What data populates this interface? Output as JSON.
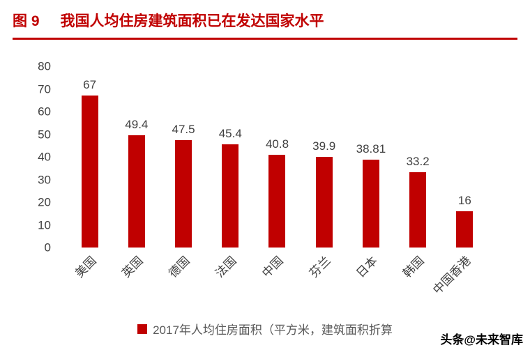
{
  "header": {
    "figure_label": "图 9",
    "title": "我国人均住房建筑面积已在发达国家水平"
  },
  "chart_data": {
    "type": "bar",
    "title": "我国人均住房建筑面积已在发达国家水平",
    "categories": [
      "美国",
      "英国",
      "德国",
      "法国",
      "中国",
      "芬兰",
      "日本",
      "韩国",
      "中国香港"
    ],
    "values": [
      67,
      49.4,
      47.5,
      45.4,
      40.8,
      39.9,
      38.81,
      33.2,
      16
    ],
    "value_labels": [
      "67",
      "49.4",
      "47.5",
      "45.4",
      "40.8",
      "39.9",
      "38.81",
      "33.2",
      "16"
    ],
    "legend": "2017年人均住房面积（平方米，建筑面积折算",
    "ylim": [
      0,
      80
    ],
    "yticks": [
      0,
      10,
      20,
      30,
      40,
      50,
      60,
      70,
      80
    ],
    "grid": false,
    "legend_position": "bottom",
    "bar_color": "#c00000",
    "xlabel": "",
    "ylabel": ""
  },
  "watermark": "头条@未来智库",
  "colors": {
    "accent": "#c00000",
    "bar": "#c00000",
    "text": "#404040",
    "legend_text": "#595959",
    "watermark_text": "#000000"
  }
}
